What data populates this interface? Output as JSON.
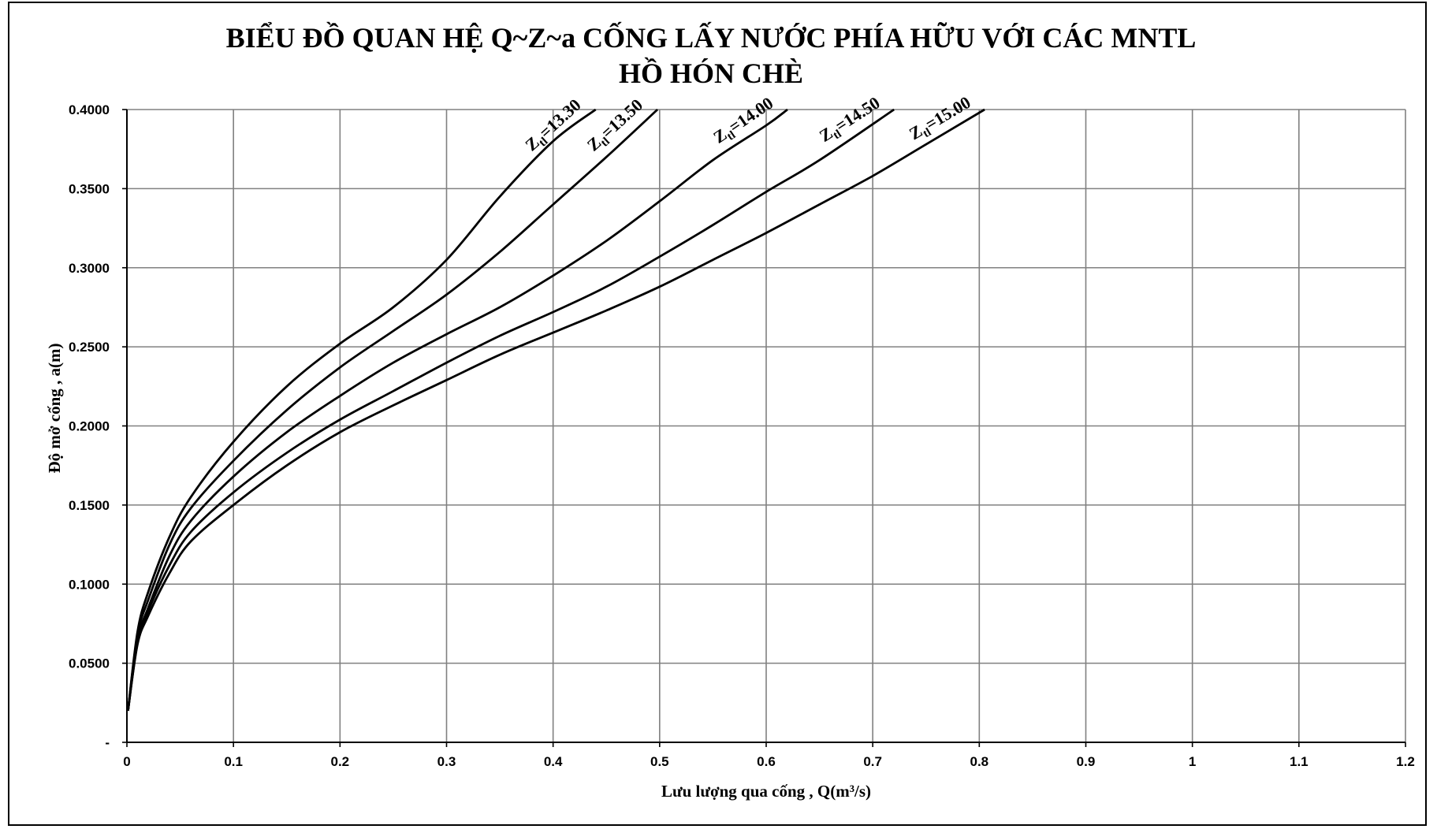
{
  "chart_data": {
    "type": "line",
    "title_line1": "BIỂU ĐỒ QUAN HỆ Q~Z~a CỐNG LẤY NƯỚC PHÍA HỮU VỚI CÁC MNTL",
    "title_line2": "HỒ HÓN CHÈ",
    "xlabel": "Lưu lượng qua cống , Q(m³/s)",
    "ylabel": "Độ mở cống , a(m)",
    "xlim": [
      0,
      1.2
    ],
    "ylim": [
      0,
      0.4
    ],
    "x_ticks": [
      "0",
      "0.1",
      "0.2",
      "0.3",
      "0.4",
      "0.5",
      "0.6",
      "0.7",
      "0.8",
      "0.9",
      "1",
      "1.1",
      "1.2"
    ],
    "y_ticks": [
      "-",
      "0.0500",
      "0.1000",
      "0.1500",
      "0.2000",
      "0.2500",
      "0.3000",
      "0.3500",
      "0.4000"
    ],
    "grid": true,
    "line_color": "#000000",
    "grid_color": "#808080",
    "series": [
      {
        "name": "Ztl=13.30",
        "label_main": "Z",
        "label_sub": "tl",
        "label_value": "=13.30",
        "x": [
          0.001,
          0.01,
          0.02,
          0.04,
          0.06,
          0.1,
          0.15,
          0.2,
          0.25,
          0.3,
          0.35,
          0.4,
          0.44
        ],
        "y": [
          0.02,
          0.07,
          0.095,
          0.13,
          0.155,
          0.19,
          0.225,
          0.252,
          0.275,
          0.305,
          0.345,
          0.38,
          0.4
        ]
      },
      {
        "name": "Ztl=13.50",
        "label_main": "Z",
        "label_sub": "tl",
        "label_value": "=13.50",
        "x": [
          0.001,
          0.01,
          0.02,
          0.04,
          0.06,
          0.1,
          0.15,
          0.2,
          0.25,
          0.3,
          0.35,
          0.4,
          0.45,
          0.498
        ],
        "y": [
          0.02,
          0.068,
          0.09,
          0.125,
          0.148,
          0.178,
          0.21,
          0.237,
          0.26,
          0.283,
          0.31,
          0.34,
          0.37,
          0.4
        ]
      },
      {
        "name": "Ztl=14.00",
        "label_main": "Z",
        "label_sub": "tl",
        "label_value": "=14.00",
        "x": [
          0.001,
          0.01,
          0.02,
          0.04,
          0.06,
          0.1,
          0.15,
          0.2,
          0.25,
          0.3,
          0.35,
          0.4,
          0.45,
          0.5,
          0.55,
          0.6,
          0.62
        ],
        "y": [
          0.02,
          0.065,
          0.085,
          0.118,
          0.14,
          0.168,
          0.196,
          0.219,
          0.24,
          0.258,
          0.275,
          0.295,
          0.317,
          0.342,
          0.368,
          0.39,
          0.4
        ]
      },
      {
        "name": "Ztl=14.50",
        "label_main": "Z",
        "label_sub": "tl",
        "label_value": "=14.50",
        "x": [
          0.001,
          0.01,
          0.02,
          0.04,
          0.06,
          0.1,
          0.15,
          0.2,
          0.25,
          0.3,
          0.35,
          0.4,
          0.45,
          0.5,
          0.55,
          0.6,
          0.65,
          0.72
        ],
        "y": [
          0.02,
          0.063,
          0.083,
          0.112,
          0.133,
          0.158,
          0.183,
          0.204,
          0.222,
          0.24,
          0.257,
          0.272,
          0.288,
          0.307,
          0.327,
          0.348,
          0.368,
          0.4
        ]
      },
      {
        "name": "Ztl=15.00",
        "label_main": "Z",
        "label_sub": "tl",
        "label_value": "=15.00",
        "x": [
          0.001,
          0.01,
          0.02,
          0.04,
          0.06,
          0.1,
          0.15,
          0.2,
          0.25,
          0.3,
          0.35,
          0.4,
          0.45,
          0.5,
          0.55,
          0.6,
          0.65,
          0.7,
          0.75,
          0.805
        ],
        "y": [
          0.02,
          0.062,
          0.08,
          0.107,
          0.127,
          0.15,
          0.175,
          0.196,
          0.213,
          0.229,
          0.245,
          0.259,
          0.273,
          0.288,
          0.305,
          0.322,
          0.34,
          0.358,
          0.378,
          0.4
        ]
      }
    ]
  }
}
